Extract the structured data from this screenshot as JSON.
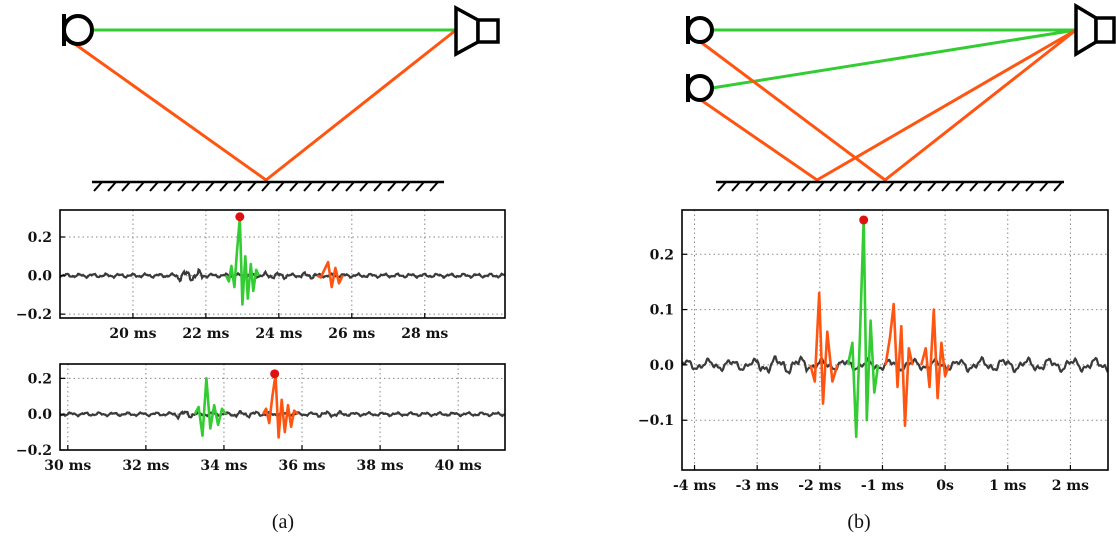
{
  "captions": {
    "a": "(a)",
    "b": "(b)"
  },
  "colors": {
    "direct": "#33cc33",
    "reflection": "#ff5511",
    "signal": "#3a3a3a",
    "peak": "#dd1111"
  },
  "chart_data": [
    {
      "type": "line",
      "panel": "a-top",
      "xlabel": "",
      "ylabel": "",
      "xlim": [
        18.0,
        30.2
      ],
      "ylim": [
        -0.22,
        0.34
      ],
      "xticks": [
        20,
        22,
        24,
        26,
        28
      ],
      "xtick_labels": [
        "20 ms",
        "22 ms",
        "24 ms",
        "26 ms",
        "28 ms"
      ],
      "yticks": [
        -0.2,
        0.0,
        0.2
      ],
      "ytick_labels": [
        "−0.2",
        "0.0",
        "0.2"
      ],
      "grid": true,
      "series": [
        {
          "role": "direct",
          "x": [
            22.55,
            22.63,
            22.7,
            22.78,
            22.85,
            22.93,
            23.0,
            23.08,
            23.15,
            23.23,
            23.3,
            23.38,
            23.45
          ],
          "values": [
            0.0,
            -0.03,
            0.05,
            -0.06,
            0.12,
            0.3,
            -0.15,
            0.1,
            -0.12,
            0.06,
            -0.08,
            0.03,
            0.0
          ]
        },
        {
          "role": "reflection",
          "x": [
            25.05,
            25.15,
            25.25,
            25.35,
            25.45,
            25.55,
            25.65,
            25.75
          ],
          "values": [
            0.0,
            -0.01,
            0.03,
            0.07,
            -0.06,
            0.04,
            -0.04,
            0.0
          ]
        }
      ],
      "peak": {
        "x": 22.93,
        "y": 0.305
      }
    },
    {
      "type": "line",
      "panel": "a-bottom",
      "xlabel": "",
      "ylabel": "",
      "xlim": [
        29.8,
        41.2
      ],
      "ylim": [
        -0.2,
        0.28
      ],
      "xticks": [
        30,
        32,
        34,
        36,
        38,
        40
      ],
      "xtick_labels": [
        "30 ms",
        "32 ms",
        "34 ms",
        "36 ms",
        "38 ms",
        "40 ms"
      ],
      "yticks": [
        -0.2,
        0.0,
        0.2
      ],
      "ytick_labels": [
        "−0.2",
        "0.0",
        "0.2"
      ],
      "grid": true,
      "series": [
        {
          "role": "direct",
          "x": [
            33.25,
            33.35,
            33.45,
            33.55,
            33.65,
            33.75,
            33.85,
            33.95,
            34.05
          ],
          "values": [
            0.0,
            0.04,
            -0.12,
            0.2,
            -0.08,
            0.05,
            -0.06,
            0.03,
            0.0
          ]
        },
        {
          "role": "reflection",
          "x": [
            35.0,
            35.08,
            35.16,
            35.24,
            35.32,
            35.4,
            35.48,
            35.56,
            35.64,
            35.72,
            35.8,
            35.9
          ],
          "values": [
            0.0,
            0.03,
            -0.05,
            0.1,
            0.22,
            -0.13,
            0.08,
            -0.1,
            0.05,
            -0.07,
            0.02,
            0.0
          ]
        }
      ],
      "peak": {
        "x": 35.3,
        "y": 0.225
      }
    },
    {
      "type": "line",
      "panel": "b",
      "xlabel": "",
      "ylabel": "",
      "xlim": [
        -4.2,
        2.6
      ],
      "ylim": [
        -0.19,
        0.28
      ],
      "xticks": [
        -4,
        -3,
        -2,
        -1,
        0,
        1,
        2
      ],
      "xtick_labels": [
        "-4 ms",
        "-3 ms",
        "-2 ms",
        "-1 ms",
        "0s",
        "1 ms",
        "2 ms"
      ],
      "yticks": [
        -0.1,
        0.0,
        0.1,
        0.2
      ],
      "ytick_labels": [
        "−0.1",
        "0.0",
        "0.1",
        "0.2"
      ],
      "grid": true,
      "series": [
        {
          "role": "reflection",
          "x": [
            -2.15,
            -2.08,
            -2.01,
            -1.95,
            -1.88,
            -1.8,
            -1.72
          ],
          "values": [
            0.0,
            -0.03,
            0.13,
            -0.07,
            0.06,
            -0.03,
            0.0
          ]
        },
        {
          "role": "direct",
          "x": [
            -1.55,
            -1.48,
            -1.42,
            -1.36,
            -1.3,
            -1.25,
            -1.19,
            -1.13,
            -1.07
          ],
          "values": [
            0.0,
            0.04,
            -0.13,
            0.05,
            0.265,
            -0.1,
            0.08,
            -0.05,
            0.0
          ]
        },
        {
          "role": "reflection",
          "x": [
            -0.95,
            -0.88,
            -0.82,
            -0.76,
            -0.7,
            -0.64,
            -0.58,
            -0.52
          ],
          "values": [
            0.0,
            0.05,
            0.11,
            -0.04,
            0.07,
            -0.11,
            0.03,
            0.0
          ]
        },
        {
          "role": "reflection",
          "x": [
            -0.38,
            -0.31,
            -0.25,
            -0.18,
            -0.12,
            -0.06,
            0.0,
            0.06
          ],
          "values": [
            0.0,
            0.03,
            -0.04,
            0.1,
            -0.06,
            0.04,
            -0.02,
            0.0
          ]
        }
      ],
      "peak": {
        "x": -1.3,
        "y": 0.262
      }
    }
  ]
}
